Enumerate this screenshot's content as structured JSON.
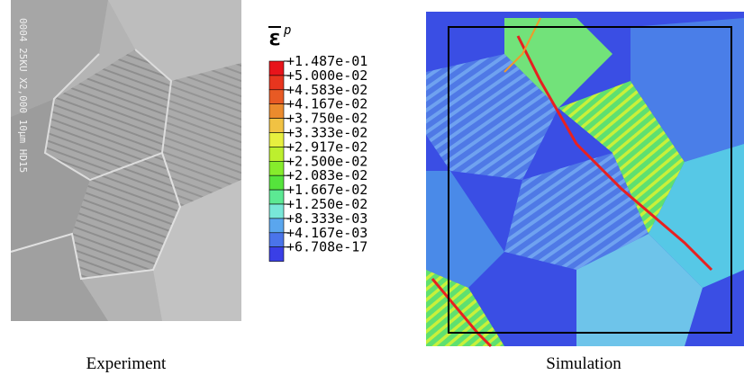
{
  "experiment": {
    "caption": "Experiment",
    "micrograph_text": "0004  25KU  X2,000  10μm HD15"
  },
  "simulation": {
    "caption": "Simulation"
  },
  "legend": {
    "symbol": "ε",
    "superscript": "p",
    "labels": [
      "+1.487e-01",
      "+5.000e-02",
      "+4.583e-02",
      "+4.167e-02",
      "+3.750e-02",
      "+3.333e-02",
      "+2.917e-02",
      "+2.500e-02",
      "+2.083e-02",
      "+1.667e-02",
      "+1.250e-02",
      "+8.333e-03",
      "+4.167e-03",
      "+6.708e-17"
    ],
    "band_colors": [
      "#e8141b",
      "#e8351e",
      "#e85a24",
      "#eb8b2d",
      "#f1c243",
      "#e7ef3f",
      "#bdef2e",
      "#86ec2c",
      "#55e43c",
      "#5ce993",
      "#78e7d8",
      "#5aa6ee",
      "#4a74ea",
      "#3a3fe6"
    ]
  }
}
